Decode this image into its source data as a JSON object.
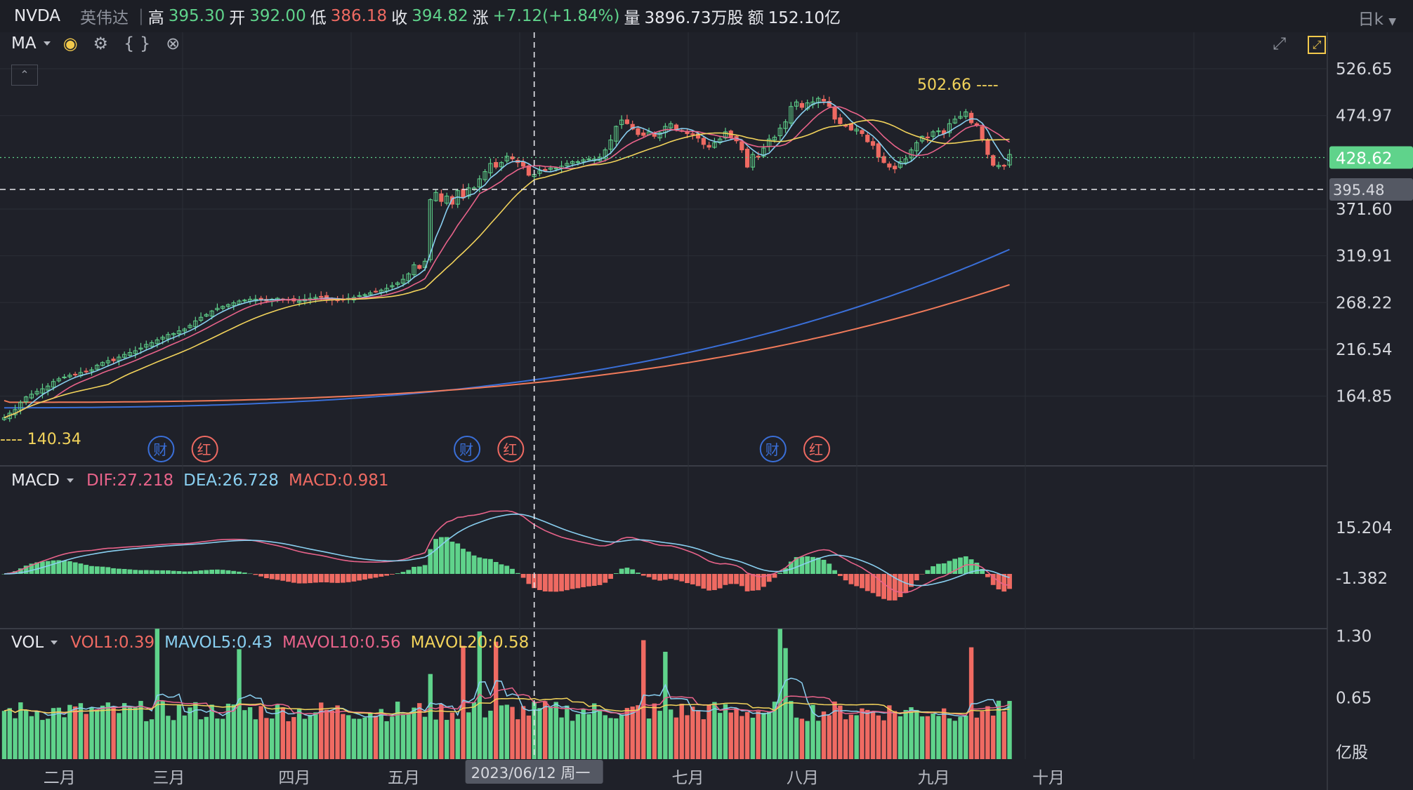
{
  "header": {
    "symbol": "NVDA",
    "name": "英伟达",
    "high_label": "高",
    "high": "395.30",
    "open_label": "开",
    "open": "392.00",
    "low_label": "低",
    "low": "386.18",
    "close_label": "收",
    "close": "394.82",
    "change_label": "涨",
    "change": "+7.12(+1.84%)",
    "volume_label": "量",
    "volume": "3896.73万股",
    "amount_label": "额",
    "amount": "152.10亿",
    "period": "日k"
  },
  "main_panel": {
    "indicator": "MA",
    "high_marker": "502.66",
    "low_marker": "140.34",
    "current_price": "428.62",
    "crosshair_price": "395.48",
    "crosshair_date": "2023/06/12 周一",
    "event_cai": "财",
    "event_hong": "红"
  },
  "macd_panel": {
    "name": "MACD",
    "dif": "DIF:27.218",
    "dea": "DEA:26.728",
    "macd": "MACD:0.981"
  },
  "vol_panel": {
    "name": "VOL",
    "vol1": "VOL1:0.39",
    "mavol5": "MAVOL5:0.43",
    "mavol10": "MAVOL10:0.56",
    "mavol20": "MAVOL20:0.58",
    "unit": "亿股"
  },
  "colors": {
    "up": "#5fd38b",
    "down": "#ef6a62",
    "ma5": "#89cff0",
    "ma10": "#e8638a",
    "ma20": "#f2d35b",
    "ma60": "#3a6fd8",
    "ma120": "#f07a5a",
    "bg": "#1f2129"
  },
  "chart_data": [
    {
      "type": "candlestick",
      "title": "NVDA 日k",
      "price_axis_ticks": [
        526.65,
        474.97,
        371.6,
        319.91,
        268.22,
        216.54,
        164.85
      ],
      "month_labels": [
        {
          "label": "二月",
          "day": 10
        },
        {
          "label": "三月",
          "day": 30
        },
        {
          "label": "四月",
          "day": 53
        },
        {
          "label": "五月",
          "day": 73
        },
        {
          "label": "七月",
          "day": 125
        },
        {
          "label": "八月",
          "day": 146
        },
        {
          "label": "九月",
          "day": 170
        },
        {
          "label": "十月",
          "day": 191
        }
      ],
      "closes": [
        141,
        146,
        150,
        158,
        164,
        167,
        170,
        173,
        176,
        181,
        184,
        186,
        188,
        189,
        191,
        192,
        194,
        199,
        202,
        204,
        204,
        208,
        211,
        213,
        215,
        218,
        222,
        224,
        227,
        230,
        233,
        234,
        237,
        239,
        243,
        248,
        252,
        255,
        259,
        262,
        264,
        266,
        268,
        270,
        271,
        272,
        272,
        271,
        270,
        272,
        273,
        272,
        271,
        270,
        270,
        272,
        273,
        274,
        274,
        273,
        271,
        271,
        272,
        273,
        274,
        276,
        277,
        279,
        280,
        282,
        284,
        287,
        290,
        294,
        300,
        310,
        306,
        314,
        382,
        390,
        380,
        386,
        377,
        392,
        384,
        395,
        395,
        405,
        413,
        422,
        418,
        423,
        430,
        427,
        423,
        419,
        409,
        410,
        414,
        414,
        417,
        417,
        419,
        422,
        424,
        424,
        426,
        427,
        427,
        429,
        437,
        448,
        463,
        470,
        466,
        460,
        454,
        453,
        457,
        452,
        456,
        463,
        466,
        460,
        458,
        455,
        454,
        450,
        443,
        440,
        445,
        449,
        457,
        451,
        447,
        437,
        418,
        432,
        429,
        439,
        449,
        451,
        461,
        468,
        485,
        490,
        484,
        489,
        490,
        494,
        491,
        485,
        471,
        466,
        464,
        459,
        460,
        455,
        446,
        442,
        429,
        423,
        418,
        416,
        424,
        427,
        437,
        445,
        452,
        451,
        457,
        458,
        455,
        466,
        471,
        474,
        479,
        467,
        464,
        449,
        432,
        420,
        420,
        419,
        432
      ],
      "volume_axis_ticks": [
        1.3,
        0.65
      ],
      "macd_axis_ticks": [
        15.204,
        -1.382
      ]
    }
  ]
}
